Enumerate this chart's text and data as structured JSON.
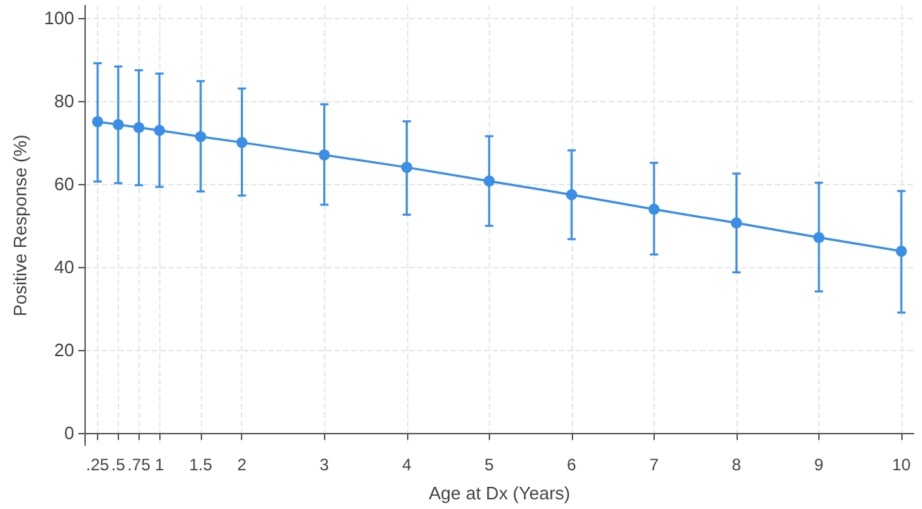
{
  "chart_data": {
    "type": "line",
    "xlabel": "Age at Dx (Years)",
    "ylabel": "Positive Response (%)",
    "x": [
      0.25,
      0.5,
      0.75,
      1,
      1.5,
      2,
      3,
      4,
      5,
      6,
      7,
      8,
      9,
      10
    ],
    "series": [
      {
        "color": "#3a8ee6",
        "values": [
          75,
          74.3,
          73.6,
          72.9,
          71.4,
          70,
          67,
          64,
          60.7,
          57.4,
          53.9,
          50.6,
          47.1,
          43.8
        ],
        "errors": [
          [
            60.6,
            89.1
          ],
          [
            60.2,
            88.3
          ],
          [
            59.7,
            87.4
          ],
          [
            59.3,
            86.6
          ],
          [
            58.2,
            84.8
          ],
          [
            57.2,
            83
          ],
          [
            55,
            79.2
          ],
          [
            52.6,
            75.1
          ],
          [
            49.9,
            71.5
          ],
          [
            46.7,
            68.1
          ],
          [
            43,
            65.1
          ],
          [
            38.7,
            62.5
          ],
          [
            34.1,
            60.3
          ],
          [
            29,
            58.3
          ]
        ]
      }
    ],
    "xlim": [
      0.1,
      10.15
    ],
    "xticks": [
      {
        "value": 0.25,
        "label": ".25"
      },
      {
        "value": 0.5,
        "label": ".5"
      },
      {
        "value": 0.75,
        "label": ".75"
      },
      1,
      1.5,
      2,
      3,
      4,
      5,
      6,
      7,
      8,
      9,
      10
    ],
    "ylim": [
      -3,
      103
    ],
    "yticks": [
      0,
      20,
      40,
      60,
      80,
      100
    ],
    "grid": true,
    "marker": "circle",
    "line_style": "solid"
  }
}
